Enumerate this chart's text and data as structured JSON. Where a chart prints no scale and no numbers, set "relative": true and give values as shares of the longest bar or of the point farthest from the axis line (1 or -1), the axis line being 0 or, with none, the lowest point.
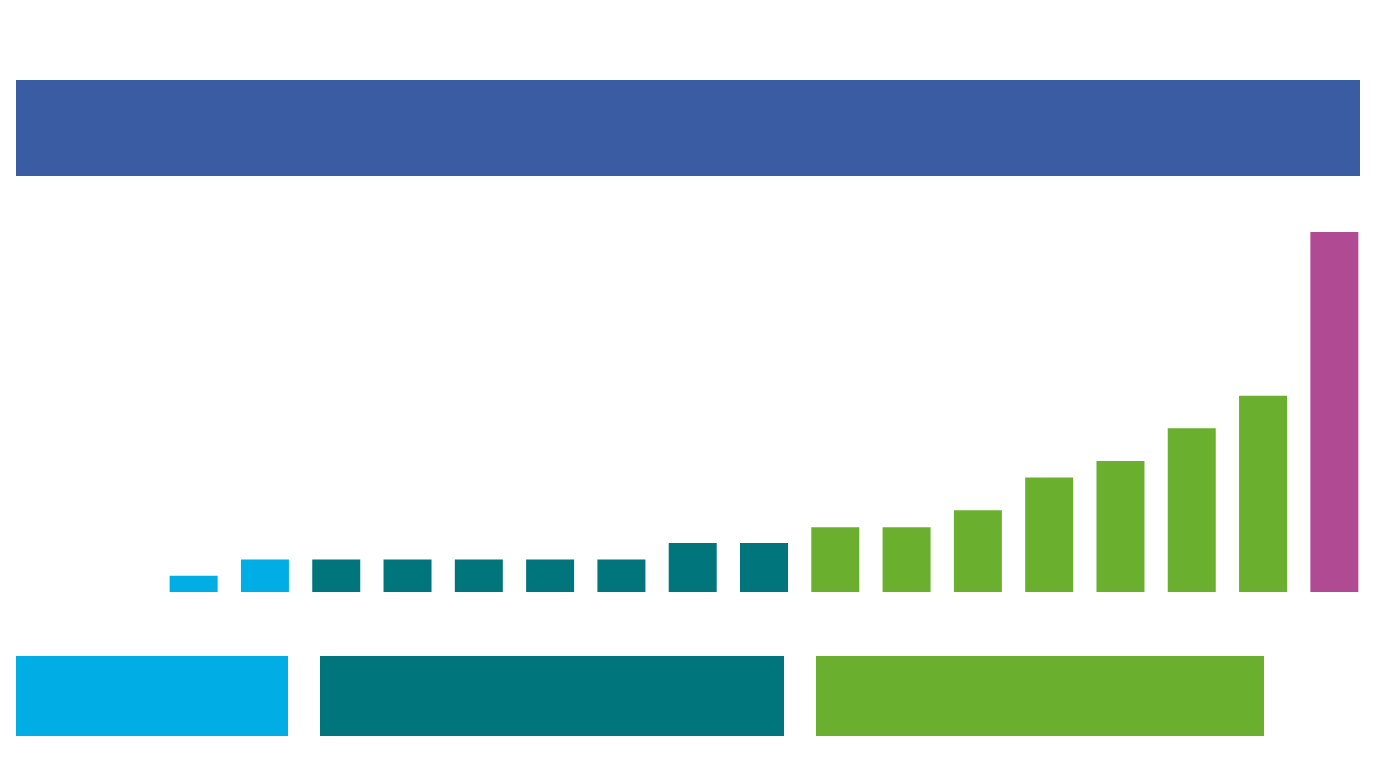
{
  "chart_data": {
    "type": "bar",
    "relative": true,
    "categories": [
      null,
      null,
      null,
      null,
      null,
      null,
      null,
      null,
      null,
      null,
      null,
      null,
      null,
      null,
      null,
      null,
      null
    ],
    "values": [
      0.045,
      0.09,
      0.09,
      0.09,
      0.09,
      0.09,
      0.09,
      0.136,
      0.136,
      0.18,
      0.18,
      0.227,
      0.318,
      0.364,
      0.455,
      0.545,
      1
    ],
    "colors": [
      "#00aee6",
      "#00aee6",
      "#00757c",
      "#00757c",
      "#00757c",
      "#00757c",
      "#00757c",
      "#00757c",
      "#00757c",
      "#6ab02e",
      "#6ab02e",
      "#6ab02e",
      "#6ab02e",
      "#6ab02e",
      "#6ab02e",
      "#6ab02e",
      "#b04a93"
    ]
  }
}
